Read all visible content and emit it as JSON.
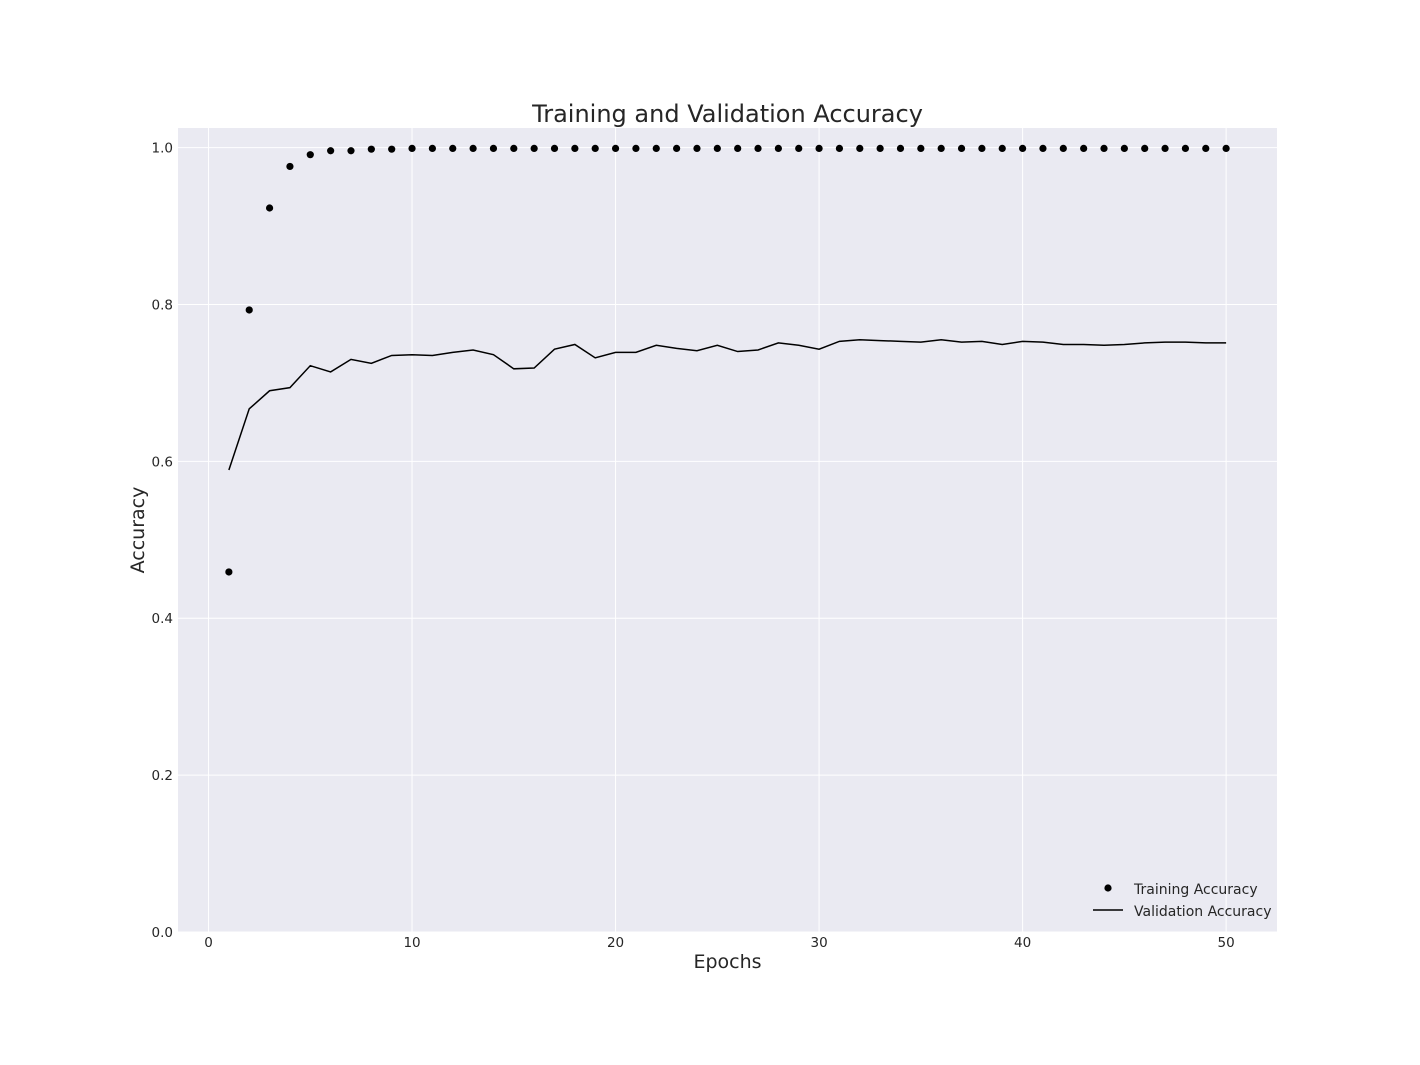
{
  "chart_data": {
    "type": "line",
    "title": "Training and Validation Accuracy",
    "xlabel": "Epochs",
    "ylabel": "Accuracy",
    "xlim": [
      -1.5,
      52.5
    ],
    "ylim": [
      0.0,
      1.025
    ],
    "xticks": [
      0,
      10,
      20,
      30,
      40,
      50
    ],
    "xtick_labels": [
      "0",
      "10",
      "20",
      "30",
      "40",
      "50"
    ],
    "yticks": [
      0.0,
      0.2,
      0.4,
      0.6,
      0.8,
      1.0
    ],
    "ytick_labels": [
      "0.0",
      "0.2",
      "0.4",
      "0.6",
      "0.8",
      "1.0"
    ],
    "grid": true,
    "legend_position": "bottom-right",
    "colors": {
      "plot_background": "#eaeaf2",
      "grid": "#ffffff",
      "series": "#000000"
    },
    "x": [
      1,
      2,
      3,
      4,
      5,
      6,
      7,
      8,
      9,
      10,
      11,
      12,
      13,
      14,
      15,
      16,
      17,
      18,
      19,
      20,
      21,
      22,
      23,
      24,
      25,
      26,
      27,
      28,
      29,
      30,
      31,
      32,
      33,
      34,
      35,
      36,
      37,
      38,
      39,
      40,
      41,
      42,
      43,
      44,
      45,
      46,
      47,
      48,
      49,
      50
    ],
    "series": [
      {
        "name": "Training Accuracy",
        "style": "dots",
        "values": [
          0.459,
          0.793,
          0.923,
          0.976,
          0.991,
          0.996,
          0.996,
          0.998,
          0.998,
          0.999,
          0.999,
          0.999,
          0.999,
          0.999,
          0.999,
          0.999,
          0.999,
          0.999,
          0.999,
          0.999,
          0.999,
          0.999,
          0.999,
          0.999,
          0.999,
          0.999,
          0.999,
          0.999,
          0.999,
          0.999,
          0.999,
          0.999,
          0.999,
          0.999,
          0.999,
          0.999,
          0.999,
          0.999,
          0.999,
          0.999,
          0.999,
          0.999,
          0.999,
          0.999,
          0.999,
          0.999,
          0.999,
          0.999,
          0.999,
          0.999
        ]
      },
      {
        "name": "Validation Accuracy",
        "style": "line",
        "values": [
          0.589,
          0.667,
          0.69,
          0.694,
          0.722,
          0.714,
          0.73,
          0.725,
          0.735,
          0.736,
          0.735,
          0.739,
          0.742,
          0.736,
          0.718,
          0.719,
          0.743,
          0.749,
          0.732,
          0.739,
          0.739,
          0.748,
          0.744,
          0.741,
          0.748,
          0.74,
          0.742,
          0.751,
          0.748,
          0.743,
          0.753,
          0.755,
          0.754,
          0.753,
          0.752,
          0.755,
          0.752,
          0.753,
          0.749,
          0.753,
          0.752,
          0.749,
          0.749,
          0.748,
          0.749,
          0.751,
          0.752,
          0.752,
          0.751,
          0.751
        ]
      }
    ]
  }
}
